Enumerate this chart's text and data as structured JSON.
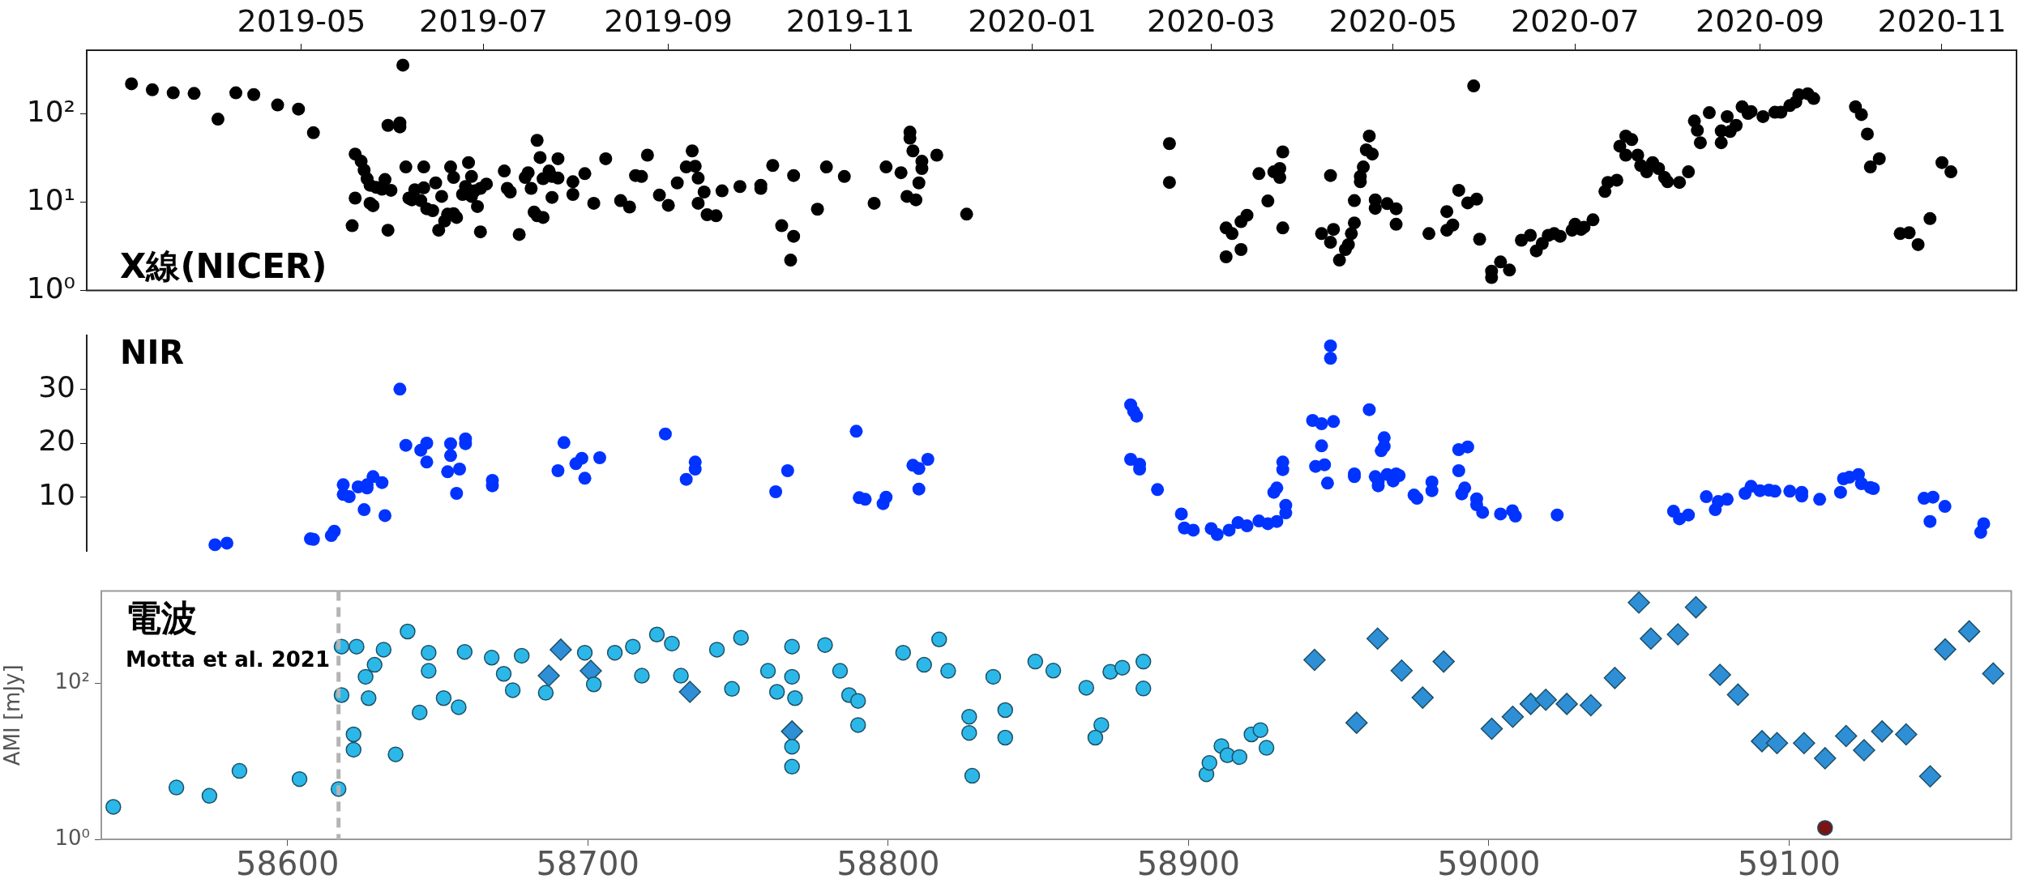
{
  "chart_data": [
    {
      "type": "scatter",
      "annotations": [
        "X線(NICER)"
      ],
      "xlim": [
        "2019-02-18",
        "2020-11-26"
      ],
      "xticks": [
        "2019-05",
        "2019-07",
        "2019-09",
        "2019-11",
        "2020-01",
        "2020-03",
        "2020-05",
        "2020-07",
        "2020-09",
        "2020-11"
      ],
      "ylim": [
        1,
        525
      ],
      "yticks": [
        {
          "value": 1,
          "label": "10⁰"
        },
        {
          "value": 10,
          "label": "10¹"
        },
        {
          "value": 100,
          "label": "10²"
        }
      ],
      "log": true,
      "marker": "circle",
      "series": [
        {
          "color": "#000000",
          "x": [
            "2019-03-05",
            "2019-03-12",
            "2019-03-19",
            "2019-03-26",
            "2019-04-03",
            "2019-04-09",
            "2019-04-15",
            "2019-04-23",
            "2019-04-30",
            "2019-05-05",
            "2019-05-18",
            "2019-05-19",
            "2019-05-19",
            "2019-05-21",
            "2019-05-22",
            "2019-05-23",
            "2019-05-24",
            "2019-05-24",
            "2019-05-25",
            "2019-05-26",
            "2019-05-28",
            "2019-05-29",
            "2019-05-30",
            "2019-05-30",
            "2019-05-31",
            "2019-06-03",
            "2019-06-03",
            "2019-06-04",
            "2019-06-05",
            "2019-06-06",
            "2019-06-07",
            "2019-06-08",
            "2019-06-10",
            "2019-06-11",
            "2019-06-11",
            "2019-06-12",
            "2019-06-14",
            "2019-06-15",
            "2019-06-16",
            "2019-06-17",
            "2019-06-18",
            "2019-06-19",
            "2019-06-20",
            "2019-06-21",
            "2019-06-21",
            "2019-06-22",
            "2019-06-24",
            "2019-06-25",
            "2019-06-26",
            "2019-06-27",
            "2019-06-27",
            "2019-06-28",
            "2019-06-29",
            "2019-06-30",
            "2019-06-30",
            "2019-07-02",
            "2019-07-08",
            "2019-07-09",
            "2019-07-10",
            "2019-07-13",
            "2019-07-15",
            "2019-07-16",
            "2019-07-17",
            "2019-07-18",
            "2019-07-19",
            "2019-07-19",
            "2019-07-20",
            "2019-07-21",
            "2019-07-21",
            "2019-07-23",
            "2019-07-24",
            "2019-07-24",
            "2019-07-26",
            "2019-07-26",
            "2019-07-31",
            "2019-07-31",
            "2019-08-04",
            "2019-08-07",
            "2019-08-11",
            "2019-08-16",
            "2019-08-19",
            "2019-08-21",
            "2019-08-23",
            "2019-08-25",
            "2019-08-29",
            "2019-09-01",
            "2019-09-04",
            "2019-09-07",
            "2019-09-09",
            "2019-09-10",
            "2019-09-11",
            "2019-09-11",
            "2019-09-13",
            "2019-09-14",
            "2019-09-17",
            "2019-09-19",
            "2019-09-25",
            "2019-10-02",
            "2019-10-02",
            "2019-10-06",
            "2019-10-09",
            "2019-10-12",
            "2019-10-13",
            "2019-10-13",
            "2019-10-21",
            "2019-10-24",
            "2019-10-30",
            "2019-11-09",
            "2019-11-13",
            "2019-11-18",
            "2019-11-20",
            "2019-11-21",
            "2019-11-21",
            "2019-11-22",
            "2019-11-23",
            "2019-11-24",
            "2019-11-25",
            "2019-11-25",
            "2019-11-30",
            "2019-12-10",
            "2020-02-16",
            "2020-02-16",
            "2020-03-06",
            "2020-03-06",
            "2020-03-08",
            "2020-03-11",
            "2020-03-11",
            "2020-03-13",
            "2020-03-17",
            "2020-03-20",
            "2020-03-22",
            "2020-03-24",
            "2020-03-24",
            "2020-03-25",
            "2020-03-25",
            "2020-04-07",
            "2020-04-10",
            "2020-04-10",
            "2020-04-11",
            "2020-04-13",
            "2020-04-15",
            "2020-04-16",
            "2020-04-17",
            "2020-04-18",
            "2020-04-18",
            "2020-04-20",
            "2020-04-20",
            "2020-04-21",
            "2020-04-22",
            "2020-04-23",
            "2020-04-24",
            "2020-04-25",
            "2020-04-25",
            "2020-04-29",
            "2020-05-02",
            "2020-05-02",
            "2020-05-13",
            "2020-05-19",
            "2020-05-19",
            "2020-05-21",
            "2020-05-23",
            "2020-05-26",
            "2020-05-28",
            "2020-05-29",
            "2020-05-30",
            "2020-06-03",
            "2020-06-03",
            "2020-06-06",
            "2020-06-09",
            "2020-06-13",
            "2020-06-16",
            "2020-06-18",
            "2020-06-20",
            "2020-06-22",
            "2020-06-24",
            "2020-06-26",
            "2020-06-30",
            "2020-07-01",
            "2020-07-03",
            "2020-07-04",
            "2020-07-07",
            "2020-07-11",
            "2020-07-12",
            "2020-07-15",
            "2020-07-16",
            "2020-07-18",
            "2020-07-18",
            "2020-07-20",
            "2020-07-22",
            "2020-07-23",
            "2020-07-25",
            "2020-07-27",
            "2020-07-29",
            "2020-07-31",
            "2020-08-01",
            "2020-08-05",
            "2020-08-08",
            "2020-08-10",
            "2020-08-11",
            "2020-08-12",
            "2020-08-15",
            "2020-08-19",
            "2020-08-19",
            "2020-08-21",
            "2020-08-22",
            "2020-08-24",
            "2020-08-26",
            "2020-08-28",
            "2020-08-29",
            "2020-09-02",
            "2020-09-06",
            "2020-09-08",
            "2020-09-11",
            "2020-09-13",
            "2020-09-14",
            "2020-09-17",
            "2020-09-19",
            "2020-10-03",
            "2020-10-05",
            "2020-10-07",
            "2020-10-08",
            "2020-10-11",
            "2020-10-18",
            "2020-10-21",
            "2020-10-24",
            "2020-10-28",
            "2020-11-01",
            "2020-11-04"
          ],
          "values": [
            219,
            187,
            173,
            170,
            87,
            173,
            165,
            126,
            113,
            61,
            5.4,
            11.1,
            35,
            29,
            23,
            18.4,
            9.7,
            15.5,
            9.1,
            14.7,
            14,
            18,
            74,
            4.8,
            13.6,
            79,
            71,
            356,
            25,
            11.1,
            10.6,
            13.8,
            10.4,
            25,
            14.5,
            8.4,
            8.0,
            16.5,
            4.8,
            11.6,
            6.1,
            7.3,
            25,
            19,
            7.4,
            6.7,
            12.2,
            15,
            28,
            11.6,
            19.5,
            13.4,
            8.9,
            4.6,
            14.3,
            16,
            22.5,
            14.3,
            13,
            4.3,
            19,
            21.5,
            14.3,
            7.7,
            50,
            7.0,
            32,
            18.4,
            6.7,
            22.5,
            19.5,
            11.3,
            18.7,
            31,
            12.2,
            17,
            21,
            9.7,
            31,
            10.4,
            8.8,
            20,
            19.5,
            34,
            12,
            9.2,
            16.5,
            25,
            38,
            25.5,
            18.7,
            9.7,
            13,
            7.2,
            7.0,
            13.4,
            15,
            15.5,
            14.3,
            26,
            5.4,
            2.2,
            4.1,
            20,
            8.3,
            25,
            19.5,
            9.7,
            25,
            21.5,
            11.6,
            62,
            53,
            38,
            10.6,
            16.5,
            24,
            29,
            34,
            7.3,
            46,
            16.7,
            2.4,
            5.1,
            4.4,
            2.9,
            6.0,
            7.1,
            21,
            10.3,
            22,
            19,
            24,
            37,
            5.1,
            4.4,
            20,
            3.5,
            4.9,
            2.2,
            2.9,
            3.3,
            4.4,
            5.8,
            10.4,
            17,
            19.5,
            25,
            39,
            56,
            35,
            10.6,
            8.5,
            9.6,
            8.4,
            5.6,
            4.4,
            7.8,
            4.8,
            5.5,
            13.6,
            9.8,
            207,
            10.8,
            3.8,
            1.65,
            1.4,
            2.1,
            1.7,
            3.7,
            4.2,
            2.8,
            3.4,
            4.2,
            4.4,
            4.1,
            4.8,
            5.6,
            4.9,
            5.2,
            6.3,
            13.2,
            16.7,
            17.7,
            43,
            34,
            56,
            51,
            34,
            26,
            22,
            28,
            24,
            19,
            17,
            16.7,
            22,
            83,
            65,
            47,
            103,
            64,
            47,
            93,
            63,
            74,
            120,
            101,
            106,
            93,
            104,
            104,
            124,
            136,
            164,
            169,
            149,
            120,
            98,
            59,
            25,
            31,
            4.4,
            4.5,
            3.3,
            6.5,
            28,
            22
          ]
        }
      ]
    },
    {
      "type": "scatter",
      "annotations": [
        "NIR"
      ],
      "xlim": [
        "2019-02-18",
        "2020-11-26"
      ],
      "ylim": [
        0,
        40
      ],
      "yticks": [
        10,
        20,
        30
      ],
      "tick_labels": "y",
      "marker": "circle",
      "series": [
        {
          "color": "#0033ff",
          "x": [
            "2019-04-02",
            "2019-04-06",
            "2019-05-04",
            "2019-05-05",
            "2019-05-11",
            "2019-05-12",
            "2019-05-15",
            "2019-05-15",
            "2019-05-17",
            "2019-05-20",
            "2019-05-22",
            "2019-05-23",
            "2019-05-23",
            "2019-05-25",
            "2019-05-28",
            "2019-05-29",
            "2019-06-03",
            "2019-06-05",
            "2019-06-10",
            "2019-06-12",
            "2019-06-12",
            "2019-06-19",
            "2019-06-20",
            "2019-06-20",
            "2019-06-22",
            "2019-06-23",
            "2019-06-25",
            "2019-06-25",
            "2019-07-04",
            "2019-07-04",
            "2019-07-26",
            "2019-07-28",
            "2019-08-01",
            "2019-08-03",
            "2019-08-04",
            "2019-08-09",
            "2019-08-31",
            "2019-09-07",
            "2019-09-10",
            "2019-09-10",
            "2019-10-07",
            "2019-10-11",
            "2019-11-03",
            "2019-11-04",
            "2019-11-06",
            "2019-11-12",
            "2019-11-13",
            "2019-11-22",
            "2019-11-24",
            "2019-11-24",
            "2019-11-27",
            "2020-02-03",
            "2020-02-04",
            "2020-02-05",
            "2020-02-03",
            "2020-02-06",
            "2020-02-06",
            "2020-02-12",
            "2020-02-20",
            "2020-02-21",
            "2020-02-24",
            "2020-03-01",
            "2020-03-03",
            "2020-03-07",
            "2020-03-10",
            "2020-03-13",
            "2020-03-17",
            "2020-03-20",
            "2020-03-23",
            "2020-03-22",
            "2020-03-23",
            "2020-03-25",
            "2020-03-25",
            "2020-03-26",
            "2020-03-26",
            "2020-04-04",
            "2020-04-07",
            "2020-04-11",
            "2020-04-07",
            "2020-04-05",
            "2020-04-08",
            "2020-04-09",
            "2020-04-10",
            "2020-04-10",
            "2020-04-18",
            "2020-04-18",
            "2020-04-23",
            "2020-04-28",
            "2020-04-28",
            "2020-04-27",
            "2020-04-25",
            "2020-04-26",
            "2020-04-26",
            "2020-04-29",
            "2020-05-01",
            "2020-05-02",
            "2020-05-03",
            "2020-05-08",
            "2020-05-09",
            "2020-05-14",
            "2020-05-14",
            "2020-05-23",
            "2020-05-26",
            "2020-05-23",
            "2020-05-25",
            "2020-05-24",
            "2020-05-29",
            "2020-05-29",
            "2020-05-31",
            "2020-06-06",
            "2020-06-10",
            "2020-06-11",
            "2020-06-25",
            "2020-08-03",
            "2020-08-05",
            "2020-08-08",
            "2020-08-14",
            "2020-08-17",
            "2020-08-18",
            "2020-08-21",
            "2020-08-27",
            "2020-08-29",
            "2020-09-01",
            "2020-09-04",
            "2020-09-06",
            "2020-09-11",
            "2020-09-15",
            "2020-09-15",
            "2020-09-21",
            "2020-09-28",
            "2020-09-29",
            "2020-10-01",
            "2020-10-04",
            "2020-10-05",
            "2020-10-08",
            "2020-10-09",
            "2020-10-26",
            "2020-10-29",
            "2020-10-28",
            "2020-11-02",
            "2020-11-14",
            "2020-11-15"
          ],
          "values": [
            1.2,
            1.5,
            2.3,
            2.2,
            2.9,
            3.7,
            12.3,
            10.5,
            10.1,
            11.9,
            7.7,
            11.7,
            12.3,
            13.8,
            12.7,
            6.6,
            30,
            19.6,
            18.7,
            20,
            16.5,
            14.7,
            17.7,
            19.9,
            10.7,
            15.2,
            20.8,
            19.9,
            13.1,
            12.1,
            14.9,
            20.1,
            16.2,
            17.2,
            13.5,
            17.3,
            21.7,
            13.3,
            16.5,
            15.2,
            11.0,
            14.9,
            22.2,
            9.9,
            9.6,
            8.8,
            10.0,
            15.9,
            15.3,
            11.5,
            17.0,
            27.1,
            25.9,
            25.0,
            17.0,
            16.1,
            15.2,
            11.4,
            6.9,
            4.3,
            3.9,
            4.2,
            3.1,
            3.9,
            5.3,
            4.7,
            5.6,
            5.1,
            5.5,
            10.9,
            11.7,
            15.1,
            16.5,
            8.5,
            7.1,
            24.2,
            23.6,
            24.0,
            19.5,
            15.7,
            16.0,
            12.6,
            38.0,
            35.7,
            14.3,
            13.8,
            26.2,
            21.0,
            19.4,
            18.6,
            13.8,
            12.1,
            12.9,
            14.2,
            13.0,
            14.3,
            14.0,
            10.4,
            9.8,
            12.8,
            11.2,
            18.8,
            19.3,
            14.9,
            11.7,
            10.6,
            9.7,
            8.6,
            7.2,
            6.9,
            7.5,
            6.5,
            6.7,
            7.4,
            6.0,
            6.7,
            10.1,
            7.7,
            9.2,
            9.6,
            10.7,
            12.0,
            11.2,
            11.3,
            11.1,
            11.1,
            10.9,
            10.2,
            9.6,
            10.9,
            13.4,
            13.7,
            14.2,
            12.5,
            11.8,
            11.6,
            9.8,
            10.0,
            5.5,
            8.3,
            3.5,
            5.1
          ]
        }
      ]
    },
    {
      "type": "scatter",
      "annotations": [
        "電波",
        "Motta et al. 2021"
      ],
      "ylabel": "AMI [mJy]",
      "xlim": [
        58538,
        59174
      ],
      "xticks": [
        58600,
        58700,
        58800,
        58900,
        59000,
        59100
      ],
      "ylim": [
        1,
        1500
      ],
      "yticks": [
        {
          "value": 1,
          "label": "10⁰"
        },
        {
          "value": 100,
          "label": "10²"
        }
      ],
      "log": true,
      "ref_lines": [
        {
          "axis": "x",
          "value": 58617,
          "color": "#b4b4b4",
          "line_style": "dashed"
        }
      ],
      "series": [
        {
          "color": "#2bb8e8",
          "marker": "circle",
          "x": [
            58542,
            58563,
            58574,
            58584,
            58604,
            58617,
            58618,
            58618,
            58622,
            58622,
            58623,
            58626,
            58629,
            58627,
            58632,
            58636,
            58640,
            58644,
            58647,
            58647,
            58652,
            58657,
            58659,
            58668,
            58672,
            58675,
            58678,
            58686,
            58699,
            58702,
            58709,
            58715,
            58718,
            58723,
            58728,
            58731,
            58743,
            58748,
            58751,
            58760,
            58763,
            58768,
            58768,
            58769,
            58768,
            58768,
            58779,
            58784,
            58787,
            58790,
            58790,
            58805,
            58812,
            58817,
            58820,
            58827,
            58827,
            58828,
            58835,
            58839,
            58839,
            58849,
            58855,
            58866,
            58871,
            58869,
            58874,
            58878,
            58885,
            58885,
            58906,
            58907,
            58911,
            58913,
            58917,
            58921,
            58924,
            58926
          ],
          "values": [
            2.6,
            4.6,
            3.6,
            7.5,
            5.9,
            4.4,
            292,
            70,
            22,
            14,
            292,
            120,
            171,
            64,
            267,
            12.2,
            456,
            42,
            244,
            143,
            64,
            49,
            250,
            211,
            131,
            81,
            223,
            75,
            244,
            96,
            244,
            292,
            124,
            417,
            319,
            124,
            267,
            84,
            380,
            143,
            77,
            292,
            120,
            64,
            15.3,
            8.5,
            306,
            143,
            70,
            59,
            29,
            244,
            171,
            361,
            143,
            37,
            23,
            6.5,
            120,
            45,
            20,
            188,
            144,
            87,
            29,
            20,
            139,
            157,
            188,
            85,
            6.8,
            9.5,
            15.6,
            11.9,
            11.3,
            22,
            25,
            14.8
          ]
        },
        {
          "color": "#2e8fd6",
          "marker": "diamond",
          "x": [
            58687,
            58691,
            58701,
            58734,
            58768,
            58942,
            58956,
            58963,
            58971,
            58978,
            58985,
            59001,
            59008,
            59014,
            59019,
            59026,
            59034,
            59042,
            59050,
            59054,
            59063,
            59069,
            59077,
            59083,
            59091,
            59096,
            59105,
            59112,
            59119,
            59125,
            59131,
            59139,
            59147,
            59152,
            59160,
            59168
          ],
          "values": [
            124,
            267,
            143,
            77,
            24,
            198,
            31,
            370,
            144,
            65,
            188,
            26,
            37,
            54,
            61,
            54,
            52,
            116,
            1070,
            370,
            419,
            931,
            127,
            71,
            18,
            17,
            17,
            10.9,
            21,
            13.8,
            24,
            22,
            6.4,
            269,
            457,
            132
          ]
        },
        {
          "color": "#7a1414",
          "marker": "circle",
          "x": [
            59112
          ],
          "values": [
            1.4
          ]
        }
      ]
    }
  ]
}
